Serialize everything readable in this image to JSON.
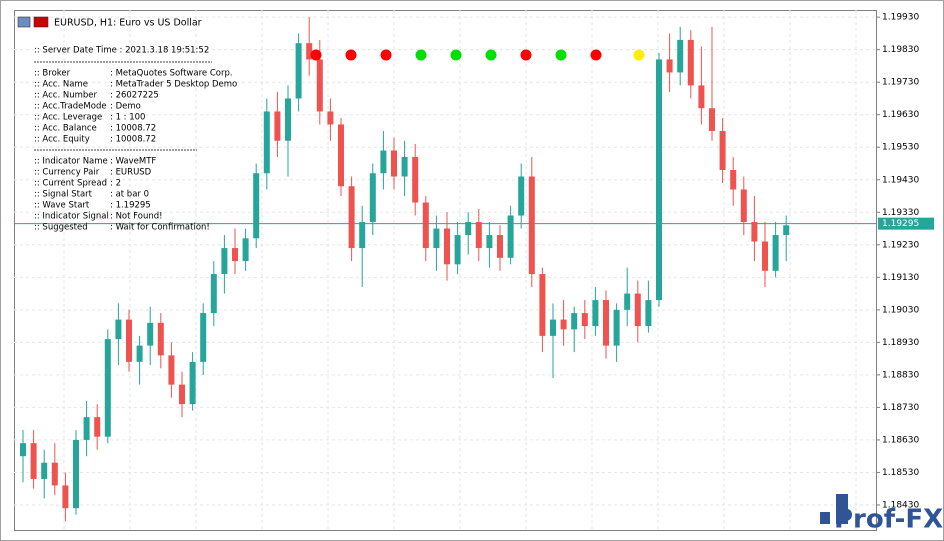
{
  "window": {
    "title": "EURUSD, H1:  Euro vs US Dollar"
  },
  "info_panel": {
    "server_time": ":: Server Date Time : 2021.3.18     19:51:52",
    "account": [
      [
        ":: Broker",
        ":  MetaQuotes Software Corp."
      ],
      [
        ":: Acc. Name",
        ":  MetaTrader 5 Desktop Demo"
      ],
      [
        ":: Acc. Number",
        ":  26027225"
      ],
      [
        ":: Acc.TradeMode",
        ":  Demo"
      ],
      [
        ":: Acc. Leverage",
        ":  1 : 100"
      ],
      [
        ":: Acc. Balance",
        ":  10008.72"
      ],
      [
        ":: Acc. Equity",
        ":  10008.72"
      ]
    ],
    "indicator": [
      [
        ":: Indicator Name",
        ":  WaveMTF"
      ],
      [
        ":: Currency Pair",
        ":  EURUSD"
      ],
      [
        ":: Current Spread",
        ":  2"
      ],
      [
        ":: Signal Start",
        ":  at bar 0"
      ],
      [
        ":: Wave Start",
        ":  1.19295"
      ],
      [
        ":: Indicator Signal",
        ":  Not Found!"
      ],
      [
        ":: Suggested",
        ":  Wait for Confirmation!"
      ]
    ]
  },
  "signals": [
    "#ff0000",
    "#ff0000",
    "#ff0000",
    "#00e000",
    "#00e000",
    "#00e000",
    "#ff0000",
    "#00e000",
    "#ff0000",
    "#ffee00"
  ],
  "watermark": "Prof-FX",
  "chart_data": {
    "type": "candlestick",
    "up_color": "#26a69a",
    "down_color": "#ef5350",
    "ylim": [
      1.18353,
      1.19952
    ],
    "yticks": [
      {
        "value": 1.1993,
        "label": "1.19930"
      },
      {
        "value": 1.1983,
        "label": "1.19830"
      },
      {
        "value": 1.1973,
        "label": "1.19730"
      },
      {
        "value": 1.1963,
        "label": "1.19630"
      },
      {
        "value": 1.1953,
        "label": "1.19530"
      },
      {
        "value": 1.1943,
        "label": "1.19430"
      },
      {
        "value": 1.1933,
        "label": "1.19330"
      },
      {
        "value": 1.1923,
        "label": "1.19230"
      },
      {
        "value": 1.1913,
        "label": "1.19130"
      },
      {
        "value": 1.1903,
        "label": "1.19030"
      },
      {
        "value": 1.1893,
        "label": "1.18930"
      },
      {
        "value": 1.1883,
        "label": "1.18830"
      },
      {
        "value": 1.1873,
        "label": "1.18730"
      },
      {
        "value": 1.1863,
        "label": "1.18630"
      },
      {
        "value": 1.1853,
        "label": "1.18530"
      },
      {
        "value": 1.1843,
        "label": "1.18430"
      }
    ],
    "grid": true,
    "current_price": 1.19295,
    "ohlc": [
      [
        1.1858,
        1.1866,
        1.185,
        1.1862
      ],
      [
        1.1862,
        1.1866,
        1.1848,
        1.1851
      ],
      [
        1.1851,
        1.186,
        1.1845,
        1.1856
      ],
      [
        1.1856,
        1.1862,
        1.1846,
        1.1849
      ],
      [
        1.1849,
        1.1853,
        1.1838,
        1.1842
      ],
      [
        1.1842,
        1.1866,
        1.184,
        1.1863
      ],
      [
        1.1863,
        1.1875,
        1.1858,
        1.187
      ],
      [
        1.187,
        1.1874,
        1.186,
        1.1864
      ],
      [
        1.1864,
        1.1897,
        1.1862,
        1.1894
      ],
      [
        1.1894,
        1.1905,
        1.1886,
        1.19
      ],
      [
        1.19,
        1.1903,
        1.1884,
        1.1887
      ],
      [
        1.1887,
        1.1895,
        1.188,
        1.1892
      ],
      [
        1.1892,
        1.1904,
        1.1886,
        1.1899
      ],
      [
        1.1899,
        1.1902,
        1.1885,
        1.1889
      ],
      [
        1.1889,
        1.1893,
        1.1876,
        1.188
      ],
      [
        1.188,
        1.1884,
        1.187,
        1.1874
      ],
      [
        1.1874,
        1.189,
        1.1872,
        1.1887
      ],
      [
        1.1887,
        1.1905,
        1.1883,
        1.1902
      ],
      [
        1.1902,
        1.1918,
        1.1898,
        1.1914
      ],
      [
        1.1914,
        1.1926,
        1.1908,
        1.1922
      ],
      [
        1.1922,
        1.1928,
        1.1914,
        1.1918
      ],
      [
        1.1918,
        1.1928,
        1.1915,
        1.1925
      ],
      [
        1.1925,
        1.1948,
        1.1922,
        1.1945
      ],
      [
        1.1945,
        1.1968,
        1.194,
        1.1964
      ],
      [
        1.1964,
        1.197,
        1.195,
        1.1955
      ],
      [
        1.1955,
        1.1972,
        1.1944,
        1.1968
      ],
      [
        1.1968,
        1.1988,
        1.1964,
        1.1985
      ],
      [
        1.1985,
        1.1993,
        1.1975,
        1.198
      ],
      [
        1.198,
        1.1986,
        1.196,
        1.1964
      ],
      [
        1.1964,
        1.1968,
        1.1955,
        1.196
      ],
      [
        1.196,
        1.1962,
        1.1938,
        1.1941
      ],
      [
        1.1941,
        1.1944,
        1.1918,
        1.1922
      ],
      [
        1.1922,
        1.1935,
        1.191,
        1.193
      ],
      [
        1.193,
        1.1948,
        1.1926,
        1.1945
      ],
      [
        1.1945,
        1.1958,
        1.194,
        1.1952
      ],
      [
        1.1952,
        1.1956,
        1.194,
        1.1944
      ],
      [
        1.1944,
        1.1955,
        1.1938,
        1.195
      ],
      [
        1.195,
        1.1954,
        1.1932,
        1.1936
      ],
      [
        1.1936,
        1.1938,
        1.1918,
        1.1922
      ],
      [
        1.1922,
        1.1932,
        1.1915,
        1.1928
      ],
      [
        1.1928,
        1.1933,
        1.1912,
        1.1917
      ],
      [
        1.1917,
        1.193,
        1.1914,
        1.1926
      ],
      [
        1.1926,
        1.1933,
        1.192,
        1.193
      ],
      [
        1.193,
        1.1934,
        1.1918,
        1.1922
      ],
      [
        1.1922,
        1.193,
        1.1916,
        1.1926
      ],
      [
        1.1926,
        1.1929,
        1.1915,
        1.1919
      ],
      [
        1.1919,
        1.1935,
        1.1917,
        1.1932
      ],
      [
        1.1932,
        1.1948,
        1.1928,
        1.1944
      ],
      [
        1.1944,
        1.195,
        1.191,
        1.1914
      ],
      [
        1.1914,
        1.1916,
        1.189,
        1.1895
      ],
      [
        1.1895,
        1.1905,
        1.1882,
        1.19
      ],
      [
        1.19,
        1.1906,
        1.1892,
        1.1897
      ],
      [
        1.1897,
        1.1904,
        1.189,
        1.1902
      ],
      [
        1.1902,
        1.1906,
        1.1894,
        1.1898
      ],
      [
        1.1898,
        1.191,
        1.1895,
        1.1906
      ],
      [
        1.1906,
        1.1909,
        1.1888,
        1.1892
      ],
      [
        1.1892,
        1.1905,
        1.1887,
        1.1903
      ],
      [
        1.1903,
        1.1916,
        1.1898,
        1.1908
      ],
      [
        1.1908,
        1.1912,
        1.1893,
        1.1898
      ],
      [
        1.1898,
        1.1912,
        1.1896,
        1.1906
      ],
      [
        1.1906,
        1.1982,
        1.1904,
        1.198
      ],
      [
        1.198,
        1.1988,
        1.197,
        1.1976
      ],
      [
        1.1976,
        1.199,
        1.1972,
        1.1986
      ],
      [
        1.1986,
        1.1989,
        1.1968,
        1.1972
      ],
      [
        1.1972,
        1.1984,
        1.196,
        1.1965
      ],
      [
        1.1965,
        1.199,
        1.1955,
        1.1958
      ],
      [
        1.1958,
        1.1962,
        1.1942,
        1.1946
      ],
      [
        1.1946,
        1.195,
        1.1935,
        1.194
      ],
      [
        1.194,
        1.1944,
        1.1926,
        1.193
      ],
      [
        1.193,
        1.1938,
        1.1918,
        1.1924
      ],
      [
        1.1924,
        1.193,
        1.191,
        1.1915
      ],
      [
        1.1915,
        1.193,
        1.1913,
        1.1926
      ],
      [
        1.1926,
        1.1932,
        1.1918,
        1.1929
      ]
    ]
  }
}
